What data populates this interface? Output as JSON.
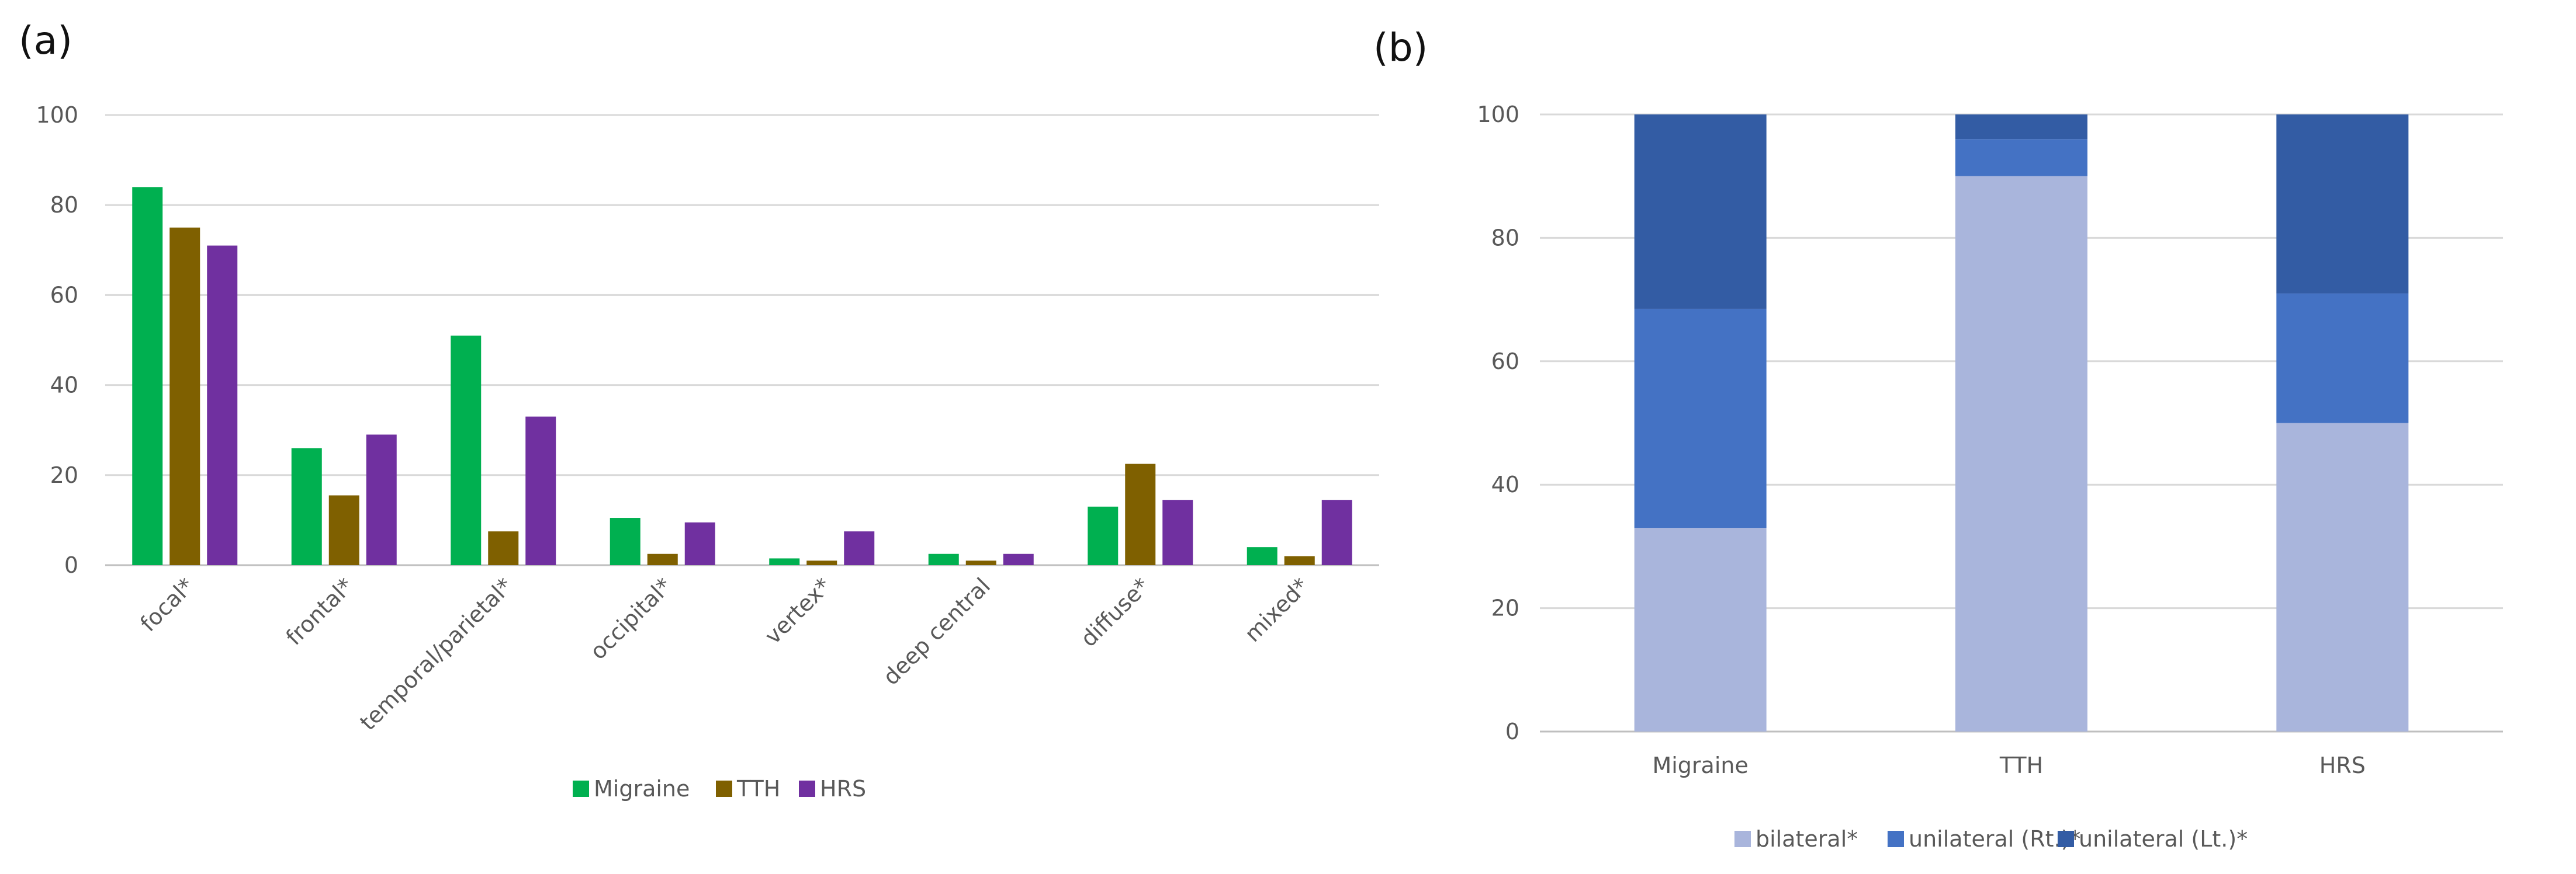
{
  "colors": {
    "migraine": "#00b050",
    "tth": "#7f6000",
    "hrs": "#7030a0",
    "bilateral": "#a9b5dc",
    "unilateral_rt": "#4472c4",
    "unilateral_lt": "#335ca4"
  },
  "chart_data": [
    {
      "panel": "(a)",
      "type": "bar",
      "categories": [
        "focal*",
        "frontal*",
        "temporal/parietal*",
        "occipital*",
        "vertex*",
        "deep central",
        "diffuse*",
        "mixed*"
      ],
      "series": [
        {
          "name": "Migraine",
          "values": [
            84,
            26,
            51,
            10.5,
            1.5,
            2.5,
            13,
            4
          ]
        },
        {
          "name": "TTH",
          "values": [
            75,
            15.5,
            7.5,
            2.5,
            1,
            1,
            22.5,
            2
          ]
        },
        {
          "name": "HRS",
          "values": [
            71,
            29,
            33,
            9.5,
            7.5,
            2.5,
            14.5,
            14.5
          ]
        }
      ],
      "yticks": [
        0,
        20,
        40,
        60,
        80,
        100
      ],
      "ylim": [
        0,
        100
      ],
      "grid": true,
      "legend": "bottom"
    },
    {
      "panel": "(b)",
      "type": "bar",
      "stacked": true,
      "categories": [
        "Migraine",
        "TTH",
        "HRS"
      ],
      "series": [
        {
          "name": "bilateral*",
          "values": [
            33,
            90,
            50
          ]
        },
        {
          "name": "unilateral (Rt.)*",
          "values": [
            35.5,
            6,
            21
          ]
        },
        {
          "name": "unilateral (Lt.)*",
          "values": [
            31.5,
            4,
            29
          ]
        }
      ],
      "yticks": [
        0,
        20,
        40,
        60,
        80,
        100
      ],
      "ylim": [
        0,
        100
      ],
      "grid": true,
      "legend": "bottom"
    }
  ]
}
